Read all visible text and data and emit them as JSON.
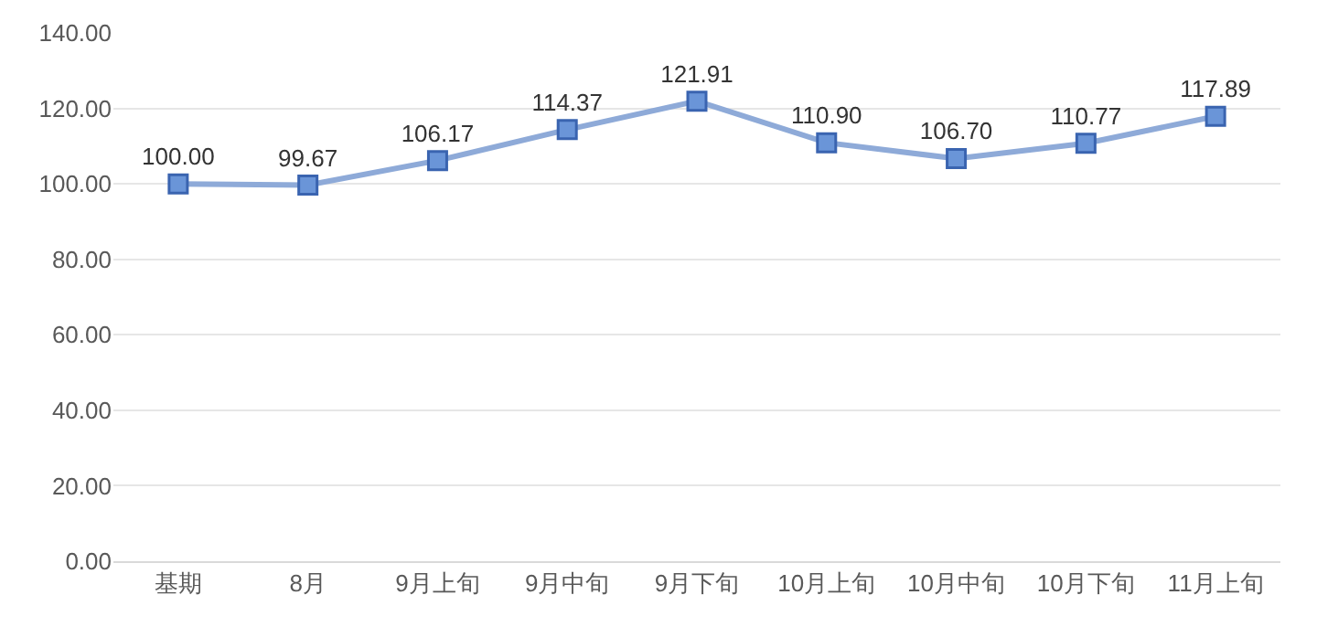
{
  "chart_data": {
    "type": "line",
    "categories": [
      "基期",
      "8月",
      "9月上旬",
      "9月中旬",
      "9月下旬",
      "10月上旬",
      "10月中旬",
      "10月下旬",
      "11月上旬"
    ],
    "series": [
      {
        "color": "#8eaad8",
        "values": [
          100.0,
          99.67,
          106.17,
          114.37,
          121.91,
          110.9,
          106.7,
          110.77,
          117.89
        ]
      }
    ],
    "value_labels": [
      "100.00",
      "99.67",
      "106.17",
      "114.37",
      "121.91",
      "110.90",
      "106.70",
      "110.77",
      "117.89"
    ],
    "ylim": [
      0,
      140
    ],
    "yticks": [
      {
        "value": 0,
        "label": "0.00"
      },
      {
        "value": 20,
        "label": "20.00"
      },
      {
        "value": 40,
        "label": "40.00"
      },
      {
        "value": 60,
        "label": "60.00"
      },
      {
        "value": 80,
        "label": "80.00"
      },
      {
        "value": 100,
        "label": "100.00"
      },
      {
        "value": 120,
        "label": "120.00"
      },
      {
        "value": 140,
        "label": "140.00"
      }
    ],
    "grid": "y",
    "marker": "square",
    "line_style": "solid"
  }
}
